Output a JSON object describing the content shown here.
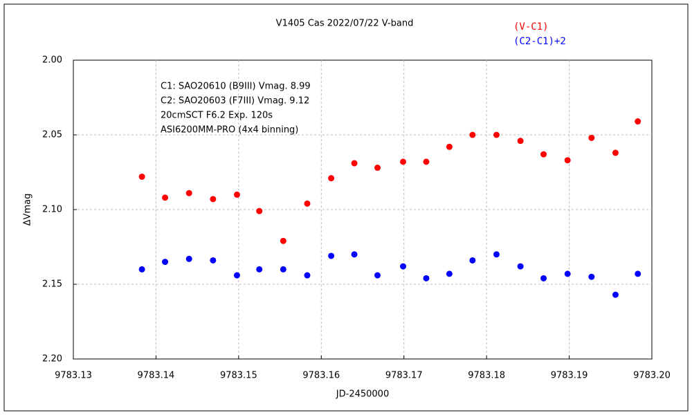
{
  "chart_data": {
    "type": "scatter",
    "title": "V1405 Cas   2022/07/22   V-band",
    "x_label": "JD-2450000",
    "y_label": "ΔVmag",
    "annotations": [
      "C1: SAO20610 (B9III) Vmag. 8.99",
      "C2: SAO20603 (F7III) Vmag. 9.12",
      "20cmSCT  F6.2  Exp. 120s",
      "ASI6200MM-PRO (4x4 binning)"
    ],
    "xlim": [
      9783.13,
      9783.2
    ],
    "xticks": [
      9783.13,
      9783.14,
      9783.15,
      9783.16,
      9783.17,
      9783.18,
      9783.19,
      {
        "value": 9783.2,
        "label": "9783.20"
      }
    ],
    "ylim": [
      2.2,
      2.0
    ],
    "yticks": [
      {
        "value": 2.0,
        "label": "2.00"
      },
      2.05,
      {
        "value": 2.1,
        "label": "2.10"
      },
      2.15,
      {
        "value": 2.2,
        "label": "2.20"
      }
    ],
    "grid": true,
    "x": [
      9783.1383,
      9783.1411,
      9783.144,
      9783.1469,
      9783.1498,
      9783.1525,
      9783.1554,
      9783.1583,
      9783.1612,
      9783.164,
      9783.1668,
      9783.1699,
      9783.1727,
      9783.1755,
      9783.1783,
      9783.1812,
      9783.1841,
      9783.1869,
      9783.1898,
      9783.1927,
      9783.1956,
      9783.1983
    ],
    "series": [
      {
        "name": "(V-C1)",
        "color": "#ff0000",
        "values": [
          2.078,
          2.092,
          2.089,
          2.093,
          2.09,
          2.101,
          2.121,
          2.096,
          2.079,
          2.069,
          2.072,
          2.068,
          2.068,
          2.058,
          2.05,
          2.05,
          2.054,
          2.063,
          2.067,
          2.052,
          2.062,
          2.041
        ]
      },
      {
        "name": "(C2-C1)+2",
        "color": "#0000ff",
        "values": [
          2.14,
          2.135,
          2.133,
          2.134,
          2.144,
          2.14,
          2.14,
          2.144,
          2.131,
          2.13,
          2.144,
          2.138,
          2.146,
          2.143,
          2.134,
          2.13,
          2.138,
          2.146,
          2.143,
          2.145,
          2.157,
          2.143
        ]
      }
    ]
  }
}
